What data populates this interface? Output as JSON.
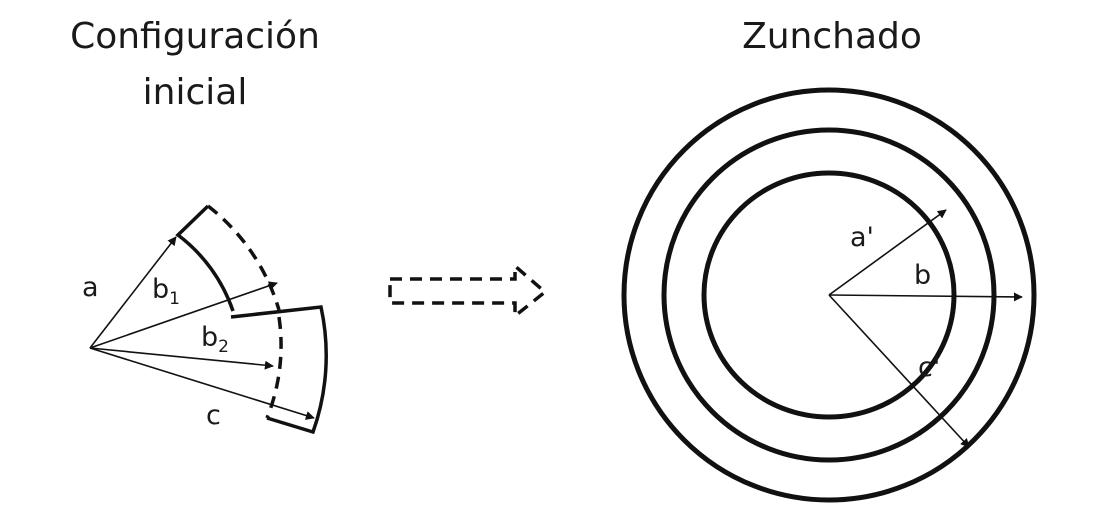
{
  "left_panel": {
    "title_line1": "Configuración",
    "title_line2": "inicial",
    "labels": {
      "a": "a",
      "b1_main": "b",
      "b1_sub": "1",
      "b2_main": "b",
      "b2_sub": "2",
      "c": "c"
    }
  },
  "right_panel": {
    "title": "Zunchado",
    "labels": {
      "a_prime": "a'",
      "b": "b",
      "c_prime": "c'"
    }
  },
  "transition_arrow": {
    "style": "dashed",
    "direction": "right"
  }
}
